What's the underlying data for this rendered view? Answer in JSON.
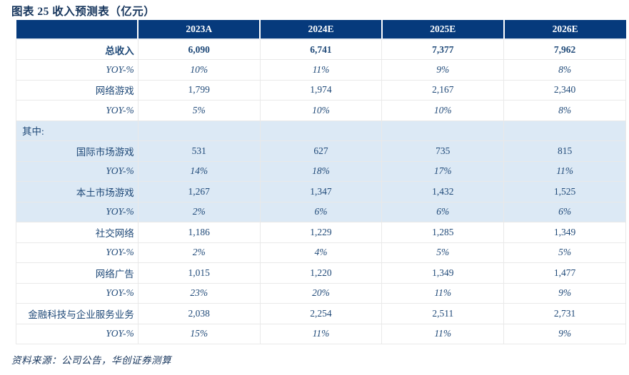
{
  "title": "图表 25  收入预测表（亿元）",
  "source_note": "资料来源：公司公告，华创证券测算",
  "colors": {
    "header_bg": "#063a7c",
    "header_text": "#ffffff",
    "band_bg": "#dce9f5",
    "text": "#1f4978",
    "title_text": "#17365d",
    "border": "#e9e9e9"
  },
  "chart_data": {
    "type": "table",
    "title": "收入预测表（亿元）",
    "columns": [
      "",
      "2023A",
      "2024E",
      "2025E",
      "2026E"
    ],
    "rows": [
      {
        "label": "总收入",
        "values": [
          "6,090",
          "6,741",
          "7,377",
          "7,962"
        ],
        "style": "total",
        "band": false
      },
      {
        "label": "YOY-%",
        "values": [
          "10%",
          "11%",
          "9%",
          "8%"
        ],
        "style": "yoy",
        "band": false
      },
      {
        "label": "网络游戏",
        "values": [
          "1,799",
          "1,974",
          "2,167",
          "2,340"
        ],
        "style": "item",
        "band": false
      },
      {
        "label": "YOY-%",
        "values": [
          "5%",
          "10%",
          "10%",
          "8%"
        ],
        "style": "yoy",
        "band": false
      },
      {
        "label": "其中:",
        "values": [
          "",
          "",
          "",
          ""
        ],
        "style": "section",
        "band": true
      },
      {
        "label": "国际市场游戏",
        "values": [
          "531",
          "627",
          "735",
          "815"
        ],
        "style": "item",
        "band": true
      },
      {
        "label": "YOY-%",
        "values": [
          "14%",
          "18%",
          "17%",
          "11%"
        ],
        "style": "yoy",
        "band": true
      },
      {
        "label": "本土市场游戏",
        "values": [
          "1,267",
          "1,347",
          "1,432",
          "1,525"
        ],
        "style": "item",
        "band": true
      },
      {
        "label": "YOY-%",
        "values": [
          "2%",
          "6%",
          "6%",
          "6%"
        ],
        "style": "yoy",
        "band": true
      },
      {
        "label": "社交网络",
        "values": [
          "1,186",
          "1,229",
          "1,285",
          "1,349"
        ],
        "style": "item",
        "band": false
      },
      {
        "label": "YOY-%",
        "values": [
          "2%",
          "4%",
          "5%",
          "5%"
        ],
        "style": "yoy",
        "band": false
      },
      {
        "label": "网络广告",
        "values": [
          "1,015",
          "1,220",
          "1,349",
          "1,477"
        ],
        "style": "item",
        "band": false
      },
      {
        "label": "YOY-%",
        "values": [
          "23%",
          "20%",
          "11%",
          "9%"
        ],
        "style": "yoy",
        "band": false
      },
      {
        "label": "金融科技与企业服务业务",
        "values": [
          "2,038",
          "2,254",
          "2,511",
          "2,731"
        ],
        "style": "item",
        "band": false
      },
      {
        "label": "YOY-%",
        "values": [
          "15%",
          "11%",
          "11%",
          "9%"
        ],
        "style": "yoy",
        "band": false
      }
    ]
  }
}
